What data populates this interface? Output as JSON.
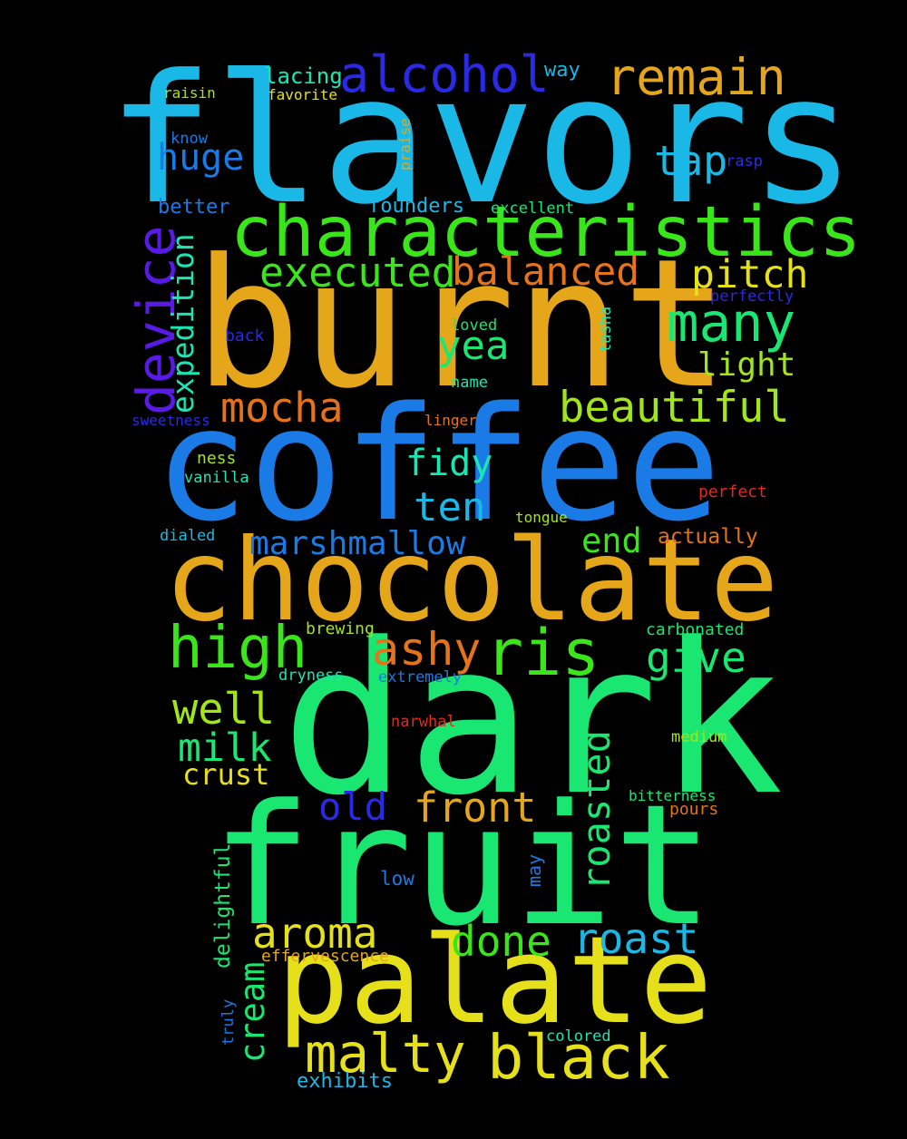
{
  "background": "#000000",
  "palette": {
    "sky": "#1ab8e6",
    "blue": "#1a7ae6",
    "indigo": "#2a2ae6",
    "violet": "#5a1ae6",
    "amber": "#e6a61a",
    "orange": "#e6721a",
    "yellow": "#e6e01a",
    "lime": "#a2e61a",
    "green": "#3ae61a",
    "mint": "#1ae672",
    "teal": "#1ae6b4",
    "red": "#e62a1a"
  },
  "words": [
    {
      "text": "flavors",
      "color": "sky"
    },
    {
      "text": "burnt",
      "color": "amber"
    },
    {
      "text": "coffee",
      "color": "blue"
    },
    {
      "text": "chocolate",
      "color": "amber"
    },
    {
      "text": "dark",
      "color": "mint"
    },
    {
      "text": "fruit",
      "color": "mint"
    },
    {
      "text": "palate",
      "color": "yellow"
    },
    {
      "text": "characteristics",
      "color": "green"
    },
    {
      "text": "alcohol",
      "color": "indigo"
    },
    {
      "text": "remain",
      "color": "amber"
    },
    {
      "text": "device",
      "color": "violet"
    },
    {
      "text": "many",
      "color": "mint"
    },
    {
      "text": "executed",
      "color": "green"
    },
    {
      "text": "balanced",
      "color": "orange"
    },
    {
      "text": "pitch",
      "color": "yellow"
    },
    {
      "text": "tap",
      "color": "sky"
    },
    {
      "text": "huge",
      "color": "blue"
    },
    {
      "text": "yea",
      "color": "mint"
    },
    {
      "text": "beautiful",
      "color": "lime"
    },
    {
      "text": "mocha",
      "color": "orange"
    },
    {
      "text": "light",
      "color": "lime"
    },
    {
      "text": "expedition",
      "color": "teal"
    },
    {
      "text": "fidy",
      "color": "teal"
    },
    {
      "text": "ten",
      "color": "sky"
    },
    {
      "text": "marshmallow",
      "color": "blue"
    },
    {
      "text": "end",
      "color": "green"
    },
    {
      "text": "high",
      "color": "green"
    },
    {
      "text": "ashy",
      "color": "orange"
    },
    {
      "text": "ris",
      "color": "green"
    },
    {
      "text": "give",
      "color": "mint"
    },
    {
      "text": "well",
      "color": "lime"
    },
    {
      "text": "milk",
      "color": "mint"
    },
    {
      "text": "crust",
      "color": "yellow"
    },
    {
      "text": "old",
      "color": "indigo"
    },
    {
      "text": "front",
      "color": "amber"
    },
    {
      "text": "roasted",
      "color": "mint"
    },
    {
      "text": "aroma",
      "color": "yellow"
    },
    {
      "text": "done",
      "color": "green"
    },
    {
      "text": "roast",
      "color": "sky"
    },
    {
      "text": "cream",
      "color": "mint"
    },
    {
      "text": "malty",
      "color": "yellow"
    },
    {
      "text": "black",
      "color": "yellow"
    },
    {
      "text": "lacing",
      "color": "teal"
    },
    {
      "text": "way",
      "color": "sky"
    },
    {
      "text": "raisin",
      "color": "lime"
    },
    {
      "text": "favorite",
      "color": "yellow"
    },
    {
      "text": "know",
      "color": "blue"
    },
    {
      "text": "praise",
      "color": "amber"
    },
    {
      "text": "rasp",
      "color": "indigo"
    },
    {
      "text": "better",
      "color": "blue"
    },
    {
      "text": "founders",
      "color": "sky"
    },
    {
      "text": "excellent",
      "color": "mint"
    },
    {
      "text": "perfectly",
      "color": "indigo"
    },
    {
      "text": "loved",
      "color": "mint"
    },
    {
      "text": "back",
      "color": "indigo"
    },
    {
      "text": "tasha",
      "color": "teal"
    },
    {
      "text": "name",
      "color": "teal"
    },
    {
      "text": "sweetness",
      "color": "indigo"
    },
    {
      "text": "linger",
      "color": "orange"
    },
    {
      "text": "ness",
      "color": "lime"
    },
    {
      "text": "vanilla",
      "color": "teal"
    },
    {
      "text": "perfect",
      "color": "red"
    },
    {
      "text": "tongue",
      "color": "lime"
    },
    {
      "text": "dialed",
      "color": "sky"
    },
    {
      "text": "actually",
      "color": "orange"
    },
    {
      "text": "brewing",
      "color": "lime"
    },
    {
      "text": "carbonated",
      "color": "mint"
    },
    {
      "text": "dryness",
      "color": "teal"
    },
    {
      "text": "extremely",
      "color": "blue"
    },
    {
      "text": "narwhal",
      "color": "red"
    },
    {
      "text": "medium",
      "color": "lime"
    },
    {
      "text": "bitterness",
      "color": "mint"
    },
    {
      "text": "pours",
      "color": "orange"
    },
    {
      "text": "may",
      "color": "blue"
    },
    {
      "text": "low",
      "color": "blue"
    },
    {
      "text": "delightful",
      "color": "mint"
    },
    {
      "text": "truly",
      "color": "blue"
    },
    {
      "text": "effervescence",
      "color": "amber"
    },
    {
      "text": "colored",
      "color": "teal"
    },
    {
      "text": "exhibits",
      "color": "sky"
    }
  ]
}
